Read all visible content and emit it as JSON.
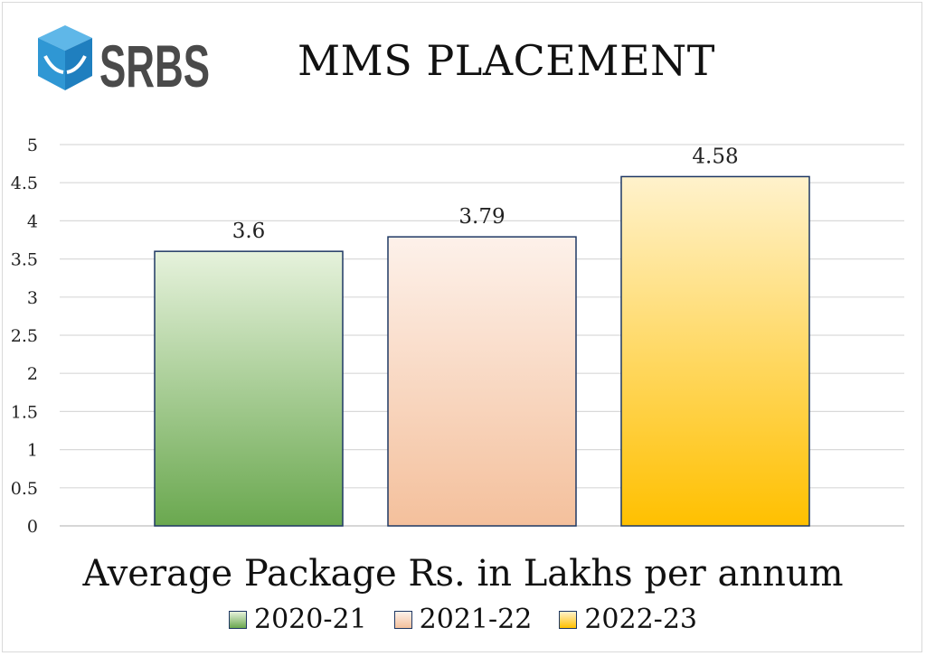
{
  "logo": {
    "text": "SRBS",
    "icon": "cube-book-icon",
    "color": "#4a4a4a",
    "icon_color": "#2f97d4"
  },
  "chart_data": {
    "type": "bar",
    "title": "MMS PLACEMENT",
    "xlabel": "Average Package Rs. in Lakhs per annum",
    "ylabel": "",
    "ylim": [
      0,
      5
    ],
    "yticks": [
      "0",
      "0.5",
      "1",
      "1.5",
      "2",
      "2.5",
      "3",
      "3.5",
      "4",
      "4.5",
      "5"
    ],
    "grid": true,
    "legend_position": "bottom",
    "series": [
      {
        "name": "2020-21",
        "values": [
          3.6
        ],
        "label": "3.6",
        "color_top": "#e6f2dc",
        "color_bottom": "#6aa84f"
      },
      {
        "name": "2021-22",
        "values": [
          3.79
        ],
        "label": "3.79",
        "color_top": "#fdf1ea",
        "color_bottom": "#f4c09c"
      },
      {
        "name": "2022-23",
        "values": [
          4.58
        ],
        "label": "4.58",
        "color_top": "#fff2cc",
        "color_bottom": "#ffc000"
      }
    ]
  }
}
